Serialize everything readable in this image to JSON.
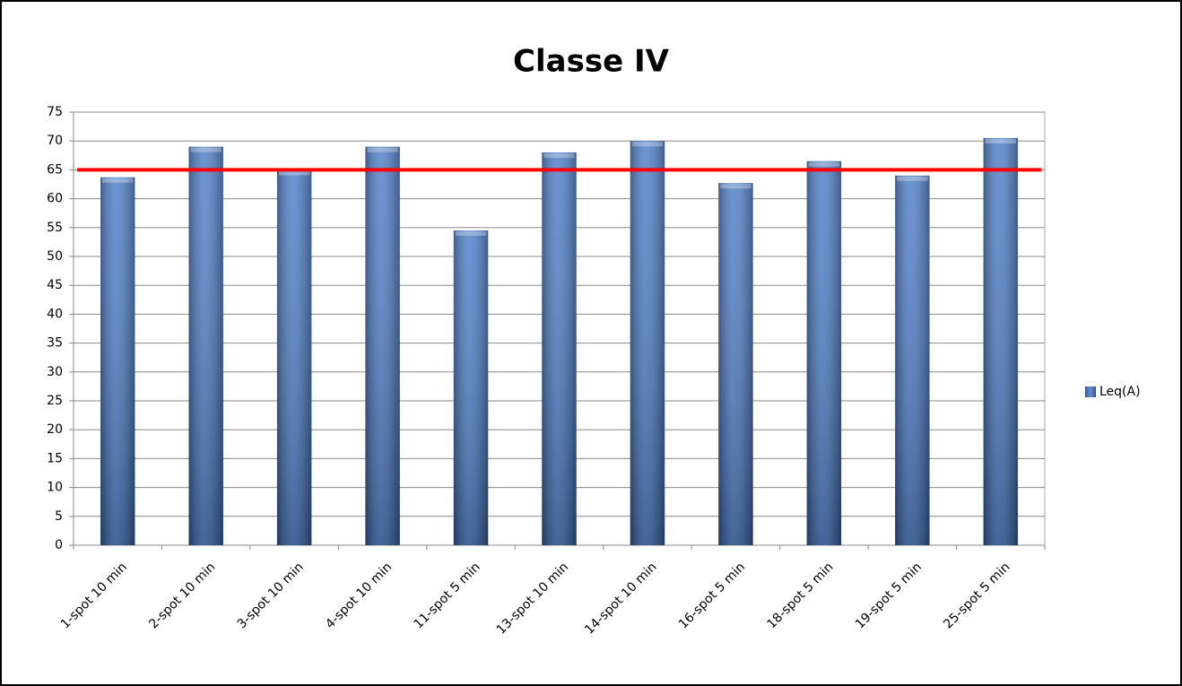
{
  "chart_data": {
    "type": "bar",
    "title": "Classe IV",
    "categories": [
      "1-spot 10 min",
      "2-spot 10 min",
      "3-spot 10 min",
      "4-spot 10 min",
      "11-spot 5 min",
      "13-spot 10 min",
      "14-spot 10 min",
      "16-spot 5 min",
      "18-spot 5 min",
      "19-spot 5 min",
      "25-spot 5 min"
    ],
    "series": [
      {
        "name": "Leq(A)",
        "color": "#3f74c4",
        "values": [
          63.7,
          69,
          65,
          69,
          54.5,
          68,
          70,
          62.7,
          66.5,
          64,
          70.5
        ]
      }
    ],
    "ylim": [
      0,
      75
    ],
    "yticks": [
      0,
      5,
      10,
      15,
      20,
      25,
      30,
      35,
      40,
      45,
      50,
      55,
      60,
      65,
      70,
      75
    ],
    "grid": true,
    "legend": "right",
    "reference_line": {
      "value": 65,
      "color": "#ff0000"
    }
  }
}
